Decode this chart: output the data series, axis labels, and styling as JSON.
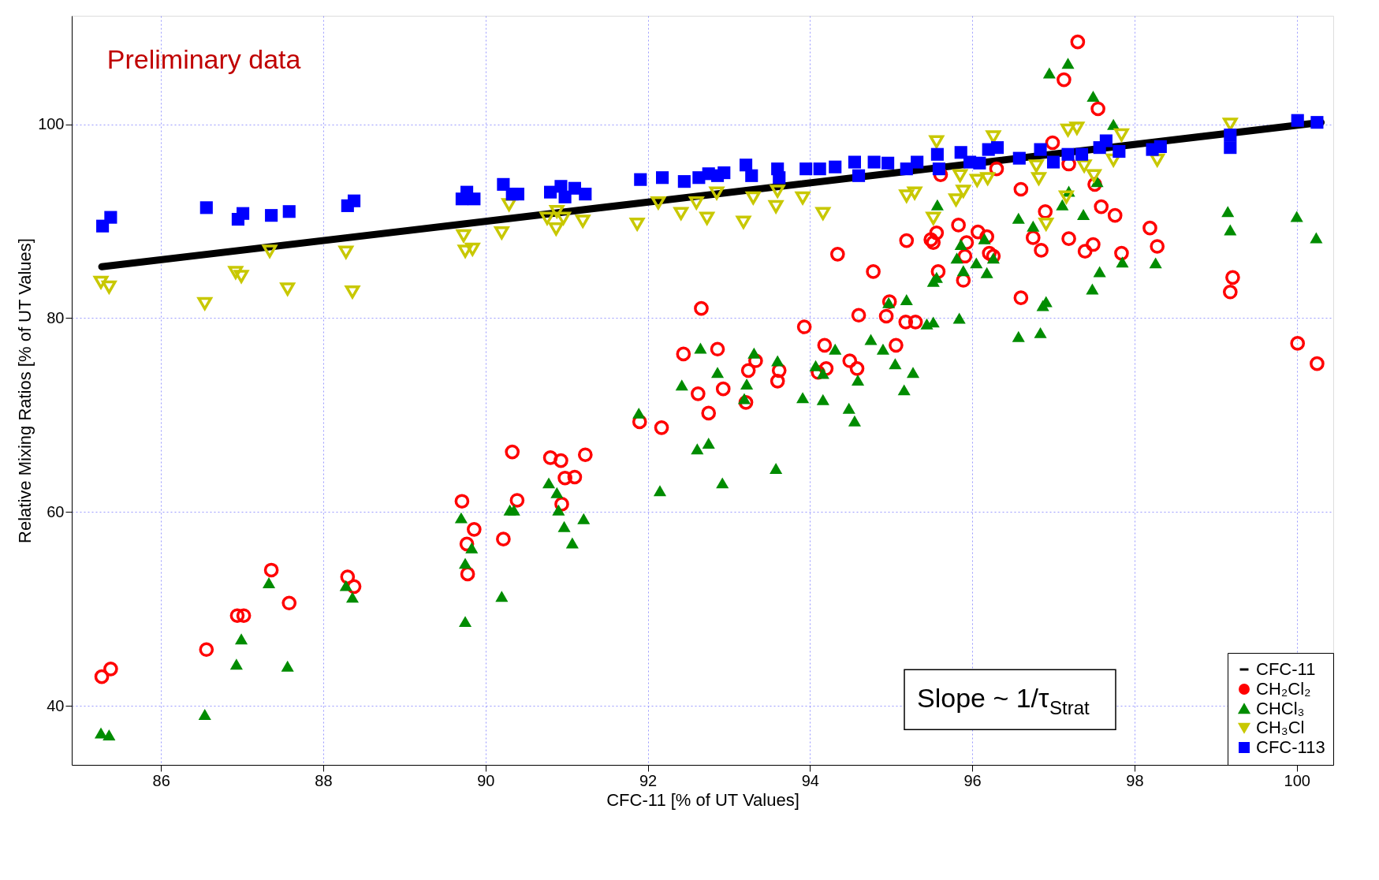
{
  "chart_data": {
    "type": "scatter",
    "xlabel": "CFC-11 [% of UT Values]",
    "ylabel": "Relative Mixing Ratios [% of UT Values]",
    "annotations": [
      "Preliminary data",
      "Slope ~ 1/τ$_{Strat}$"
    ],
    "xlim": [
      84.9,
      100.45
    ],
    "ylim": [
      33.9,
      111.2
    ],
    "xticks": [
      86,
      88,
      90,
      92,
      94,
      96,
      98,
      100
    ],
    "yticks": [
      40,
      60,
      80,
      100
    ],
    "grid": true,
    "legend": "bottom right",
    "series": [
      {
        "name": "CFC-11",
        "type": "line",
        "color": "#000000",
        "line_style": "solid",
        "marker": "none",
        "x": [
          85.27,
          100.3
        ],
        "values": [
          85.3,
          100.2
        ]
      },
      {
        "name": "CH₂Cl₂",
        "color": "#ff0000",
        "marker": "circle",
        "x": [
          85.27,
          85.38,
          86.56,
          86.94,
          87.02,
          87.36,
          87.58,
          88.3,
          88.38,
          89.71,
          89.77,
          89.78,
          89.86,
          90.22,
          90.33,
          90.39,
          90.8,
          90.93,
          90.94,
          90.98,
          91.1,
          91.23,
          91.9,
          92.17,
          92.44,
          92.62,
          92.66,
          92.75,
          92.86,
          92.93,
          93.21,
          93.24,
          93.33,
          93.6,
          93.62,
          93.93,
          94.1,
          94.18,
          94.2,
          94.34,
          94.49,
          94.58,
          94.6,
          94.78,
          94.94,
          94.98,
          95.06,
          95.19,
          95.18,
          95.3,
          95.49,
          95.56,
          95.58,
          95.61,
          95.52,
          95.83,
          95.89,
          95.91,
          95.93,
          96.07,
          96.18,
          96.21,
          96.26,
          96.3,
          96.6,
          96.6,
          96.75,
          96.85,
          96.9,
          96.99,
          97.13,
          97.19,
          97.19,
          97.3,
          97.39,
          97.49,
          97.51,
          97.55,
          97.59,
          97.76,
          97.84,
          98.19,
          98.28,
          99.18,
          99.21,
          100.01,
          100.25
        ],
        "values": [
          43.0,
          43.8,
          45.8,
          49.3,
          49.3,
          54.0,
          50.6,
          53.3,
          52.3,
          61.1,
          56.7,
          53.6,
          58.2,
          57.2,
          66.2,
          61.2,
          65.6,
          65.3,
          60.8,
          63.5,
          63.6,
          65.9,
          69.3,
          68.7,
          76.3,
          72.2,
          81.0,
          70.2,
          76.8,
          72.7,
          71.3,
          74.6,
          75.6,
          73.5,
          74.6,
          79.1,
          74.4,
          77.2,
          74.8,
          86.6,
          75.6,
          74.8,
          80.3,
          84.8,
          80.2,
          81.7,
          77.2,
          88.0,
          79.6,
          79.6,
          88.1,
          88.8,
          84.8,
          94.8,
          87.8,
          89.6,
          83.9,
          86.4,
          87.8,
          88.9,
          88.4,
          86.7,
          86.4,
          95.4,
          93.3,
          82.1,
          88.3,
          87.0,
          91.0,
          98.1,
          104.6,
          95.9,
          88.2,
          108.5,
          86.9,
          87.6,
          93.8,
          101.6,
          91.5,
          90.6,
          86.7,
          89.3,
          87.4,
          82.7,
          84.2,
          77.4,
          75.3
        ]
      },
      {
        "name": "CHCl₃",
        "color": "#008c00",
        "marker": "triangle",
        "x": [
          85.26,
          85.36,
          86.54,
          86.93,
          86.99,
          87.33,
          87.56,
          88.28,
          88.36,
          89.7,
          89.75,
          89.75,
          89.83,
          90.2,
          90.3,
          90.35,
          90.78,
          90.88,
          90.9,
          90.97,
          91.07,
          91.21,
          91.89,
          92.15,
          92.42,
          92.61,
          92.65,
          92.75,
          92.86,
          92.92,
          93.19,
          93.22,
          93.31,
          93.58,
          93.6,
          93.91,
          94.07,
          94.16,
          94.16,
          94.31,
          94.48,
          94.55,
          94.59,
          94.75,
          94.9,
          94.97,
          95.05,
          95.16,
          95.19,
          95.27,
          95.44,
          95.52,
          95.52,
          95.57,
          95.56,
          95.81,
          95.84,
          95.86,
          95.89,
          96.05,
          96.15,
          96.18,
          96.26,
          96.57,
          96.57,
          96.75,
          96.84,
          96.87,
          96.91,
          96.95,
          97.11,
          97.18,
          97.19,
          97.37,
          97.49,
          97.48,
          97.57,
          97.54,
          97.74,
          97.85,
          98.26,
          99.15,
          99.18,
          100.0,
          100.24
        ],
        "values": [
          37.2,
          37.0,
          39.1,
          44.3,
          46.9,
          52.7,
          44.1,
          52.4,
          51.2,
          59.4,
          48.7,
          54.7,
          56.3,
          51.3,
          60.2,
          60.2,
          63.0,
          62.0,
          60.2,
          58.5,
          56.8,
          59.3,
          70.2,
          62.2,
          73.1,
          66.5,
          76.9,
          67.1,
          74.4,
          63.0,
          71.7,
          73.2,
          76.4,
          64.5,
          75.6,
          71.8,
          75.1,
          71.6,
          74.3,
          76.8,
          70.7,
          69.4,
          73.6,
          77.8,
          76.8,
          81.6,
          75.3,
          72.6,
          81.9,
          74.4,
          79.4,
          79.6,
          83.8,
          91.7,
          84.2,
          86.2,
          80.0,
          87.6,
          84.9,
          85.7,
          88.2,
          84.7,
          86.2,
          90.3,
          78.1,
          89.5,
          78.5,
          81.3,
          81.7,
          105.3,
          91.7,
          106.3,
          93.1,
          90.7,
          102.9,
          83.0,
          84.8,
          94.1,
          100.0,
          85.8,
          85.7,
          91.0,
          89.1,
          90.5,
          88.3
        ]
      },
      {
        "name": "CH₃Cl",
        "color": "#c8c800",
        "marker": "triangle-down",
        "x": [
          85.26,
          85.36,
          86.54,
          86.92,
          86.99,
          87.34,
          87.56,
          88.28,
          88.36,
          89.73,
          89.75,
          89.84,
          90.2,
          90.29,
          90.76,
          90.87,
          90.88,
          90.96,
          91.2,
          91.87,
          92.13,
          92.41,
          92.6,
          92.73,
          92.85,
          93.18,
          93.3,
          93.58,
          93.6,
          93.91,
          94.16,
          95.19,
          95.29,
          95.56,
          95.52,
          95.8,
          95.85,
          95.89,
          96.06,
          96.19,
          96.26,
          96.79,
          96.82,
          96.91,
          97.16,
          97.18,
          97.29,
          97.38,
          97.5,
          97.74,
          97.84,
          98.28,
          99.18
        ],
        "values": [
          83.7,
          83.2,
          81.5,
          84.7,
          84.3,
          86.9,
          83.0,
          86.8,
          82.7,
          88.5,
          86.9,
          87.1,
          88.8,
          91.7,
          90.3,
          89.2,
          91.0,
          90.3,
          90.0,
          89.7,
          91.9,
          90.8,
          91.9,
          90.3,
          92.9,
          89.9,
          92.4,
          91.5,
          93.1,
          92.4,
          90.8,
          92.6,
          92.9,
          98.2,
          90.3,
          92.2,
          94.7,
          93.1,
          94.2,
          94.4,
          98.7,
          95.7,
          94.4,
          89.7,
          92.5,
          99.4,
          99.6,
          95.7,
          94.7,
          96.3,
          98.9,
          96.3,
          100.0
        ]
      },
      {
        "name": "CFC-113",
        "color": "#0000ff",
        "marker": "square",
        "x": [
          85.28,
          85.38,
          86.56,
          86.95,
          87.01,
          87.36,
          87.58,
          88.3,
          88.38,
          89.71,
          89.77,
          89.86,
          90.22,
          90.33,
          90.4,
          90.8,
          90.93,
          90.98,
          91.1,
          91.23,
          91.91,
          92.18,
          92.45,
          92.63,
          92.75,
          92.86,
          92.94,
          93.21,
          93.28,
          93.6,
          93.62,
          93.95,
          94.12,
          94.31,
          94.55,
          94.6,
          94.79,
          94.96,
          95.19,
          95.32,
          95.57,
          95.59,
          95.86,
          95.97,
          96.09,
          96.2,
          96.31,
          96.58,
          96.84,
          97.0,
          97.18,
          97.35,
          97.57,
          97.65,
          97.81,
          98.22,
          98.32,
          99.18,
          99.18,
          100.01,
          100.25
        ],
        "values": [
          89.5,
          90.4,
          91.4,
          90.2,
          90.8,
          90.6,
          91.0,
          91.6,
          92.1,
          92.3,
          93.0,
          92.3,
          93.8,
          92.8,
          92.8,
          93.0,
          93.6,
          92.5,
          93.4,
          92.8,
          94.3,
          94.5,
          94.1,
          94.5,
          94.9,
          94.7,
          95.0,
          95.8,
          94.7,
          95.4,
          94.5,
          95.4,
          95.4,
          95.6,
          96.1,
          94.7,
          96.1,
          96.0,
          95.4,
          96.1,
          96.9,
          95.4,
          97.1,
          96.1,
          96.0,
          97.4,
          97.6,
          96.5,
          97.4,
          96.1,
          96.9,
          96.9,
          97.6,
          98.3,
          97.2,
          97.4,
          97.7,
          98.9,
          97.6,
          100.4,
          100.2
        ]
      }
    ]
  }
}
